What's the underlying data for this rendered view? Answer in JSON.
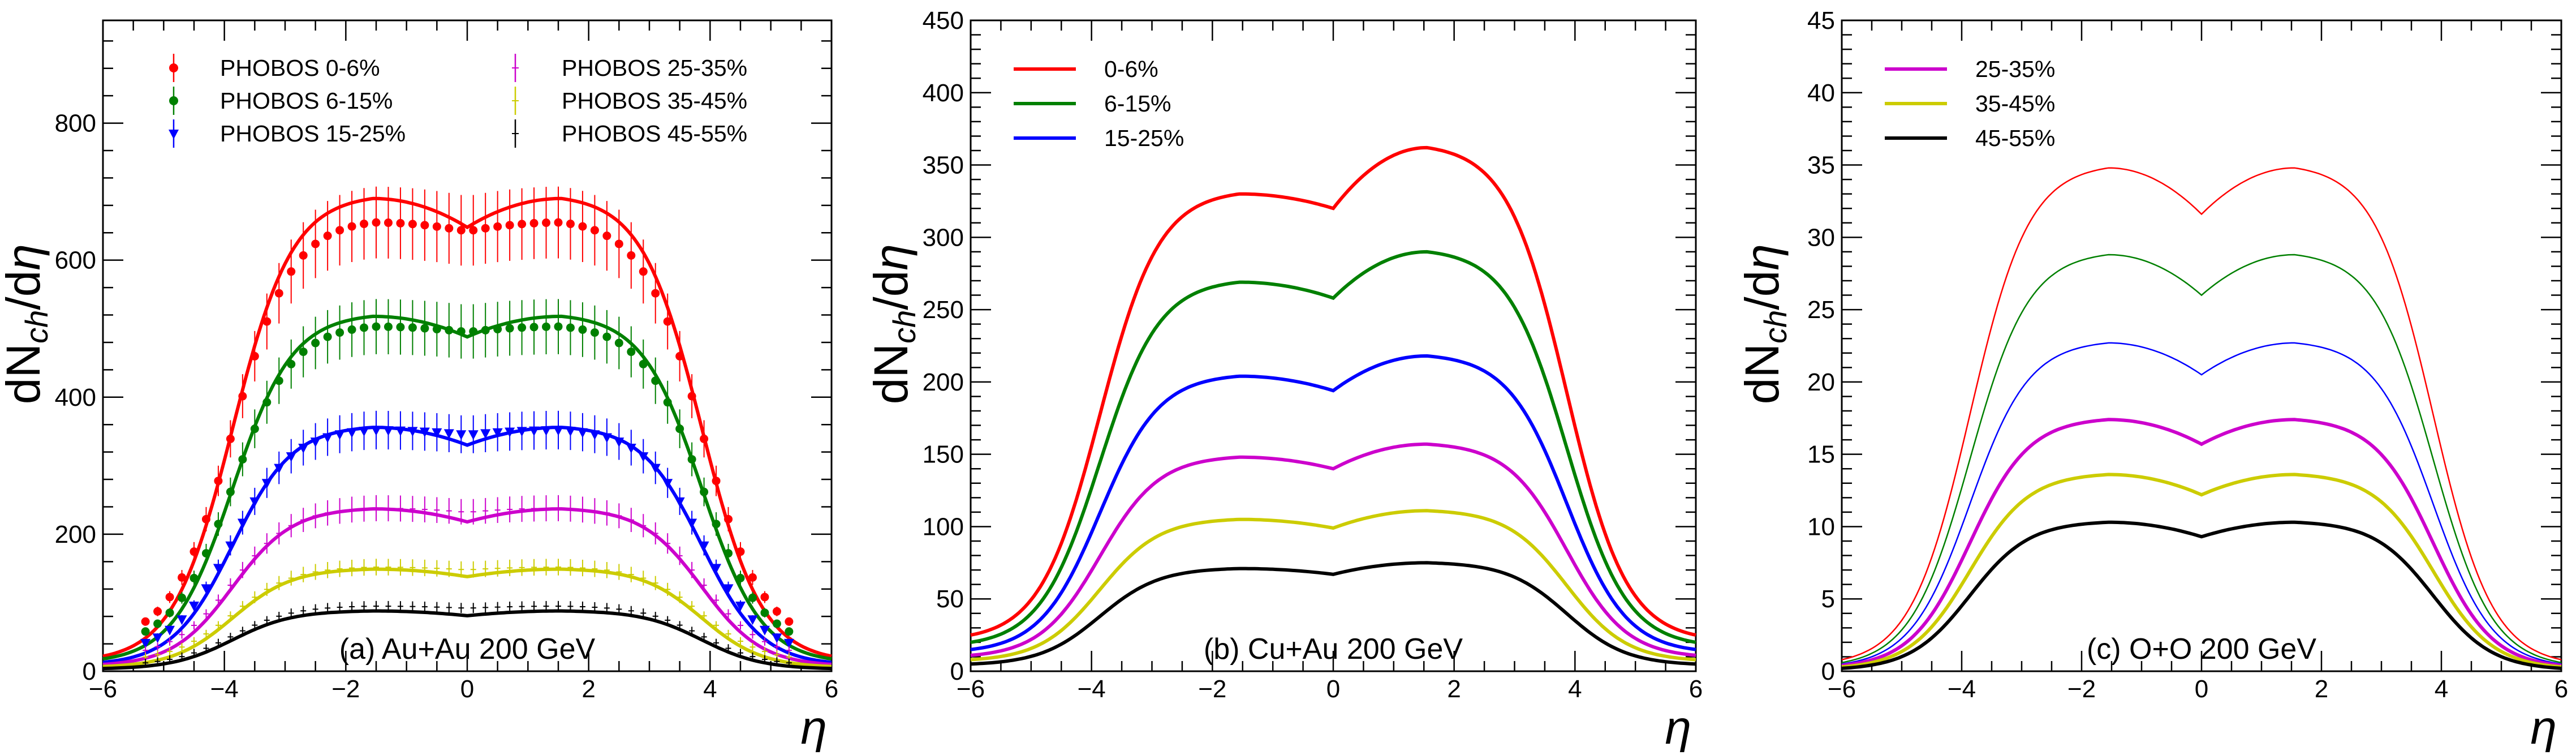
{
  "chart_data": [
    {
      "type": "line",
      "panel": "a",
      "title": "(a) Au+Au 200 GeV",
      "xlabel": "η",
      "ylabel": "dN<sub>ch</sub>/dη",
      "ylabel_parts": [
        "dN",
        "ch",
        "/d",
        "η"
      ],
      "xlim": [
        -6,
        6
      ],
      "ylim": [
        0,
        950
      ],
      "xticks": [
        -6,
        -4,
        -2,
        0,
        2,
        4,
        6
      ],
      "yticks": [
        0,
        200,
        400,
        600,
        800
      ],
      "line_width": "thick",
      "legend_columns": 2,
      "legend": [
        {
          "label": "PHOBOS 0-6%",
          "color": "#ff0000",
          "marker": "circle"
        },
        {
          "label": "PHOBOS 6-15%",
          "color": "#008000",
          "marker": "circle"
        },
        {
          "label": "PHOBOS 15-25%",
          "color": "#0000ff",
          "marker": "triangle-down"
        },
        {
          "label": "PHOBOS 25-35%",
          "color": "#cc00cc",
          "marker": "cross"
        },
        {
          "label": "PHOBOS 35-45%",
          "color": "#cccc00",
          "marker": "cross"
        },
        {
          "label": "PHOBOS 45-55%",
          "color": "#000000",
          "marker": "cross"
        }
      ],
      "series": [
        {
          "name": "0-6%",
          "color": "#ff0000",
          "peak": 690,
          "dip": 648,
          "edge": 22,
          "data_peak": 655,
          "data_dip": 642,
          "marker": "circle"
        },
        {
          "name": "6-15%",
          "color": "#008000",
          "peak": 518,
          "dip": 488,
          "edge": 18,
          "data_peak": 503,
          "data_dip": 495,
          "marker": "circle"
        },
        {
          "name": "15-25%",
          "color": "#0000ff",
          "peak": 356,
          "dip": 330,
          "edge": 13,
          "data_peak": 352,
          "data_dip": 345,
          "marker": "triangle-down"
        },
        {
          "name": "25-35%",
          "color": "#cc00cc",
          "peak": 237,
          "dip": 218,
          "edge": 10,
          "data_peak": 238,
          "data_dip": 232,
          "marker": "cross"
        },
        {
          "name": "35-45%",
          "color": "#cccc00",
          "peak": 149,
          "dip": 138,
          "edge": 7,
          "data_peak": 152,
          "data_dip": 148,
          "marker": "cross"
        },
        {
          "name": "45-55%",
          "color": "#000000",
          "peak": 88,
          "dip": 81,
          "edge": 4,
          "data_peak": 95,
          "data_dip": 92,
          "marker": "cross"
        }
      ]
    },
    {
      "type": "line",
      "panel": "b",
      "title": "(b) Cu+Au 200 GeV",
      "xlabel": "η",
      "ylabel_parts": [
        "dN",
        "ch",
        "/d",
        "η"
      ],
      "xlim": [
        -6,
        6
      ],
      "ylim": [
        0,
        450
      ],
      "xticks": [
        -6,
        -4,
        -2,
        0,
        2,
        4,
        6
      ],
      "yticks": [
        0,
        50,
        100,
        150,
        200,
        250,
        300,
        350,
        400,
        450
      ],
      "line_width": "thick",
      "legend_columns": 1,
      "legend": [
        {
          "label": "0-6%",
          "color": "#ff0000"
        },
        {
          "label": "6-15%",
          "color": "#008000"
        },
        {
          "label": "15-25%",
          "color": "#0000ff"
        }
      ],
      "series": [
        {
          "name": "0-6%",
          "color": "#ff0000",
          "peak_left": 330,
          "peak_right": 362,
          "dip": 320,
          "edge": 25
        },
        {
          "name": "6-15%",
          "color": "#008000",
          "peak_left": 269,
          "peak_right": 290,
          "dip": 258,
          "edge": 20
        },
        {
          "name": "15-25%",
          "color": "#0000ff",
          "peak_left": 204,
          "peak_right": 218,
          "dip": 194,
          "edge": 15
        },
        {
          "name": "25-35%",
          "color": "#cc00cc",
          "peak_left": 148,
          "peak_right": 157,
          "dip": 140,
          "edge": 11
        },
        {
          "name": "35-45%",
          "color": "#cccc00",
          "peak_left": 105,
          "peak_right": 111,
          "dip": 99,
          "edge": 8
        },
        {
          "name": "45-55%",
          "color": "#000000",
          "peak_left": 71,
          "peak_right": 75,
          "dip": 67,
          "edge": 5
        }
      ]
    },
    {
      "type": "line",
      "panel": "c",
      "title": "(c) O+O 200 GeV",
      "xlabel": "η",
      "ylabel_parts": [
        "dN",
        "ch",
        "/d",
        "η"
      ],
      "xlim": [
        -6,
        6
      ],
      "ylim": [
        0,
        45
      ],
      "xticks": [
        -6,
        -4,
        -2,
        0,
        2,
        4,
        6
      ],
      "yticks": [
        0,
        5,
        10,
        15,
        20,
        25,
        30,
        35,
        40,
        45
      ],
      "line_width": "mixed",
      "legend_columns": 1,
      "legend": [
        {
          "label": "25-35%",
          "color": "#cc00cc"
        },
        {
          "label": "35-45%",
          "color": "#cccc00"
        },
        {
          "label": "45-55%",
          "color": "#000000"
        }
      ],
      "series": [
        {
          "name": "0-6%",
          "color": "#ff0000",
          "peak": 34.8,
          "dip": 31.6,
          "edge": 0.8,
          "thin": true
        },
        {
          "name": "6-15%",
          "color": "#008000",
          "peak": 28.8,
          "dip": 26.0,
          "edge": 0.6,
          "thin": true
        },
        {
          "name": "15-25%",
          "color": "#0000ff",
          "peak": 22.7,
          "dip": 20.5,
          "edge": 0.5,
          "thin": true
        },
        {
          "name": "25-35%",
          "color": "#cc00cc",
          "peak": 17.4,
          "dip": 15.7,
          "edge": 0.4,
          "thin": false
        },
        {
          "name": "35-45%",
          "color": "#cccc00",
          "peak": 13.6,
          "dip": 12.2,
          "edge": 0.3,
          "thin": false
        },
        {
          "name": "45-55%",
          "color": "#000000",
          "peak": 10.3,
          "dip": 9.3,
          "edge": 0.2,
          "thin": false
        }
      ]
    }
  ]
}
